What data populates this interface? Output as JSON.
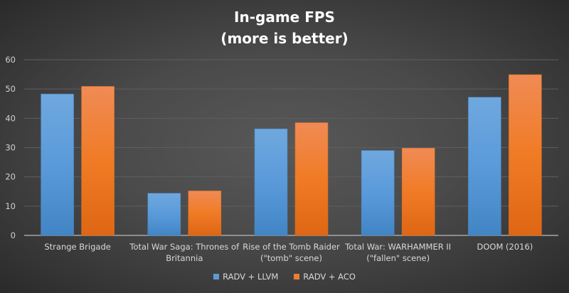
{
  "chart_data": {
    "type": "bar",
    "title_lines": [
      "In-game FPS",
      "(more is better)"
    ],
    "categories": [
      [
        "Strange Brigade"
      ],
      [
        "Total War Saga: Thrones of",
        "Britannia"
      ],
      [
        "Rise of the Tomb Raider",
        "(\"tomb\" scene)"
      ],
      [
        "Total War: WARHAMMER II",
        "(\"fallen\" scene)"
      ],
      [
        "DOOM (2016)"
      ]
    ],
    "series": [
      {
        "name": "RADV + LLVM",
        "color": "#5b9bd5",
        "values": [
          48.3,
          14.4,
          36.4,
          29.0,
          47.2
        ]
      },
      {
        "name": "RADV + ACO",
        "color": "#ed7d31",
        "values": [
          50.9,
          15.2,
          38.5,
          29.8,
          54.9
        ]
      }
    ],
    "ylim": [
      0,
      60
    ],
    "yticks": [
      "0",
      "10",
      "20",
      "30",
      "40",
      "50",
      "60"
    ],
    "grid": true,
    "legend": "bottom"
  }
}
